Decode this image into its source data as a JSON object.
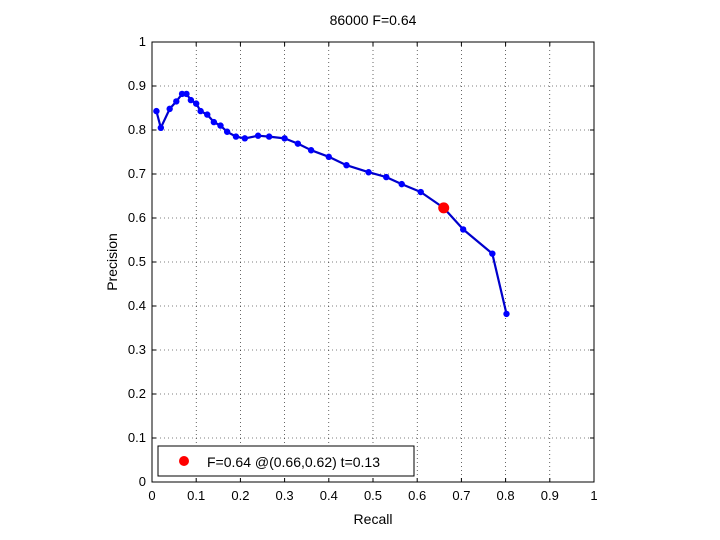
{
  "chart_data": {
    "type": "line",
    "title": "86000 F=0.64",
    "xlabel": "Recall",
    "ylabel": "Precision",
    "xlim": [
      0,
      1
    ],
    "ylim": [
      0,
      1
    ],
    "xticks": [
      "0",
      "0.1",
      "0.2",
      "0.3",
      "0.4",
      "0.5",
      "0.6",
      "0.7",
      "0.8",
      "0.9",
      "1"
    ],
    "yticks": [
      "0",
      "0.1",
      "0.2",
      "0.3",
      "0.4",
      "0.5",
      "0.6",
      "0.7",
      "0.8",
      "0.9",
      "1"
    ],
    "grid": true,
    "legend_position": "bottom-left",
    "colors": {
      "curve": "#0000cc",
      "marker": "#0000ff",
      "highlight": "#ff0000"
    },
    "series": [
      {
        "x": [
          0.01,
          0.02,
          0.04,
          0.055,
          0.068,
          0.078,
          0.088,
          0.1,
          0.11,
          0.125,
          0.14,
          0.155,
          0.17,
          0.19,
          0.21,
          0.24,
          0.265,
          0.3,
          0.33,
          0.36,
          0.4,
          0.44,
          0.49,
          0.53,
          0.565,
          0.608,
          0.66,
          0.704,
          0.77,
          0.802
        ],
        "y": [
          0.843,
          0.805,
          0.848,
          0.865,
          0.882,
          0.882,
          0.868,
          0.86,
          0.843,
          0.835,
          0.818,
          0.81,
          0.796,
          0.785,
          0.781,
          0.787,
          0.785,
          0.781,
          0.769,
          0.754,
          0.739,
          0.72,
          0.704,
          0.693,
          0.677,
          0.659,
          0.623,
          0.574,
          0.519,
          0.382
        ]
      }
    ],
    "highlight_point": {
      "x": 0.66,
      "y": 0.623
    },
    "legend": {
      "label": "F=0.64 @(0.66,0.62) t=0.13"
    }
  }
}
